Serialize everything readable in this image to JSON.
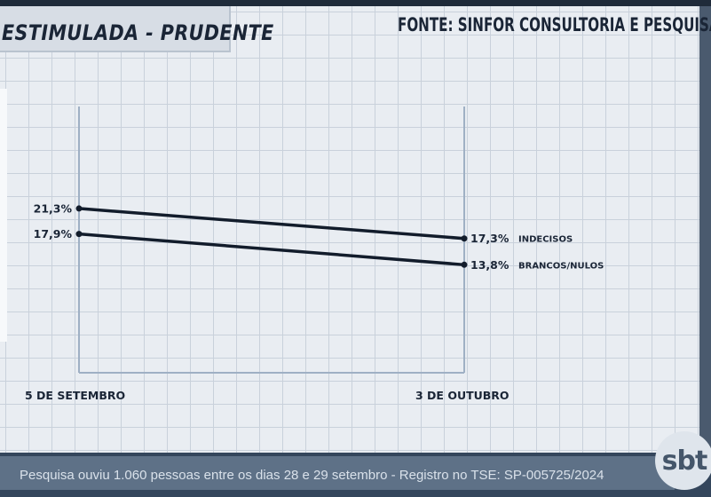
{
  "header": {
    "title": "ESTIMULADA - PRUDENTE",
    "source": "FONTE: SINFOR CONSULTORIA E PESQUISA"
  },
  "footer": {
    "text": "Pesquisa ouviu 1.060 pessoas entre os dias 28 e 29 setembro  - Registro no TSE: SP-005725/2024"
  },
  "logo": {
    "text": "sbt"
  },
  "chart_data": {
    "type": "line",
    "title": "ESTIMULADA - PRUDENTE",
    "categories": [
      "5 DE SETEMBRO",
      "3 DE OUTUBRO"
    ],
    "series": [
      {
        "name": "INDECISOS",
        "values": [
          21.3,
          17.3
        ],
        "labels": [
          "21,3%",
          "17,3%"
        ]
      },
      {
        "name": "BRANCOS/NULOS",
        "values": [
          17.9,
          13.8
        ],
        "labels": [
          "17,9%",
          "13,8%"
        ]
      }
    ],
    "ylim": [
      -0.6,
      34.9
    ],
    "grid": true,
    "colors": {
      "line": "#121c2b",
      "axis": "#9fb0c4"
    }
  }
}
